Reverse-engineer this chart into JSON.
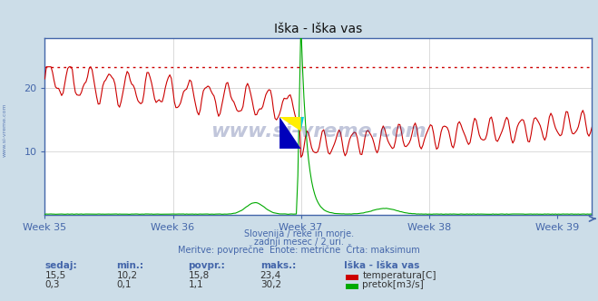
{
  "title": "Iška - Iška vas",
  "outer_bg": "#ccdde8",
  "plot_bg": "#ffffff",
  "weeks": [
    "Week 35",
    "Week 36",
    "Week 37",
    "Week 38",
    "Week 39"
  ],
  "n_points": 360,
  "temp_color": "#cc0000",
  "flow_color": "#00aa00",
  "temp_max_line": 23.4,
  "flow_max_line": 30.2,
  "ymin": 0,
  "ymax": 28,
  "grid_color": "#cccccc",
  "axis_color": "#4466aa",
  "tick_color": "#4466aa",
  "subtitle_lines": [
    "Slovenija / reke in morje.",
    "zadnji mesec / 2 uri.",
    "Meritve: povprečne  Enote: metrične  Črta: maksimum"
  ],
  "table_headers": [
    "sedaj:",
    "min.:",
    "povpr.:",
    "maks.:",
    "Iška - Iška vas"
  ],
  "row1": [
    "15,5",
    "10,2",
    "15,8",
    "23,4"
  ],
  "row2": [
    "0,3",
    "0,1",
    "1,1",
    "30,2"
  ],
  "label1": "temperatura[C]",
  "label2": "pretok[m3/s]",
  "watermark": "www.si-vreme.com",
  "watermark_color": "#334488",
  "sidebar_text": "www.si-vreme.com"
}
